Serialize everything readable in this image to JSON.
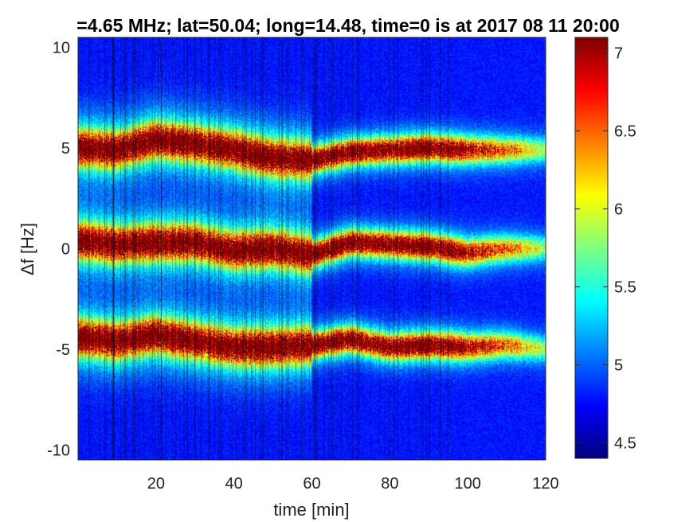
{
  "chart_data": {
    "type": "heatmap",
    "title": "=4.65 MHz;  lat=50.04; long=14.48, time=0 is at 2017 08 11 20:00",
    "xlabel": "time [min]",
    "ylabel": "Δf [Hz]",
    "xlim": [
      0,
      120
    ],
    "ylim": [
      -10.5,
      10.5
    ],
    "x_ticks": [
      "20",
      "40",
      "60",
      "80",
      "100",
      "120"
    ],
    "y_ticks": [
      "10",
      "5",
      "0",
      "-5",
      "-10"
    ],
    "grid": false,
    "colormap": "jet",
    "colorbar": {
      "range": [
        4.4,
        7.1
      ],
      "ticks": [
        "7",
        "6.5",
        "6",
        "5.5",
        "5",
        "4.5"
      ]
    },
    "bands": [
      {
        "time": [
          0,
          10,
          20,
          30,
          40,
          50,
          60,
          70,
          80,
          90,
          100,
          110,
          120
        ],
        "center": [
          5.0,
          4.9,
          5.4,
          5.2,
          4.9,
          4.5,
          4.4,
          4.8,
          4.9,
          5.0,
          4.9,
          4.9,
          4.9
        ]
      },
      {
        "time": [
          0,
          10,
          20,
          30,
          40,
          50,
          60,
          70,
          80,
          90,
          100,
          110,
          120
        ],
        "center": [
          0.4,
          0.2,
          0.3,
          0.3,
          -0.1,
          0.0,
          -0.3,
          0.3,
          0.2,
          0.1,
          -0.2,
          0.0,
          0.0
        ]
      },
      {
        "time": [
          0,
          10,
          20,
          30,
          40,
          50,
          60,
          70,
          80,
          90,
          100,
          110,
          120
        ],
        "center": [
          -4.4,
          -4.6,
          -4.3,
          -4.6,
          -4.9,
          -4.9,
          -4.8,
          -4.5,
          -4.9,
          -4.8,
          -4.9,
          -4.8,
          -5.0
        ]
      }
    ]
  }
}
